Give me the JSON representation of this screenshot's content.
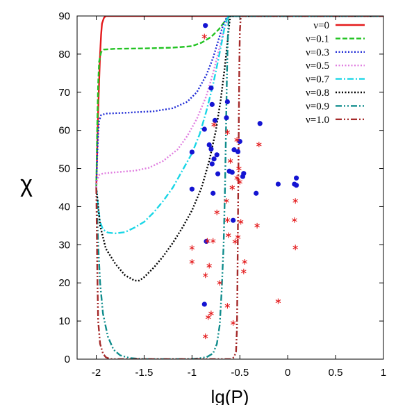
{
  "chart_data": {
    "type": "line",
    "title": "",
    "xlabel": "lg(P)",
    "ylabel": "χ",
    "xlim": [
      -2.2,
      1
    ],
    "ylim": [
      0,
      90
    ],
    "xticks": [
      -2,
      -1.5,
      -1,
      -0.5,
      0,
      0.5,
      1
    ],
    "xtick_labels": [
      "-2",
      "-1.5",
      "-1",
      "-0.5",
      "0",
      "0.5",
      "1"
    ],
    "yticks": [
      0,
      10,
      20,
      30,
      40,
      50,
      60,
      70,
      80,
      90
    ],
    "ytick_labels": [
      "0",
      "10",
      "20",
      "30",
      "40",
      "50",
      "60",
      "70",
      "80",
      "90"
    ],
    "grid": false,
    "legend_position": "top-right",
    "series": [
      {
        "name": "ν=0",
        "color": "#e41a1c",
        "dash": "solid",
        "points": [
          [
            -2.0,
            45
          ],
          [
            -1.99,
            55
          ],
          [
            -1.98,
            65
          ],
          [
            -1.97,
            73
          ],
          [
            -1.96,
            80
          ],
          [
            -1.95,
            85
          ],
          [
            -1.94,
            88
          ],
          [
            -1.92,
            89.5
          ],
          [
            -1.9,
            90
          ],
          [
            1.0,
            90
          ]
        ]
      },
      {
        "name": "ν=0.1",
        "color": "#22c322",
        "dash": "dashed",
        "points": [
          [
            -2.0,
            45
          ],
          [
            -1.99,
            60
          ],
          [
            -1.98,
            72
          ],
          [
            -1.97,
            78
          ],
          [
            -1.95,
            80.5
          ],
          [
            -1.92,
            81.2
          ],
          [
            -1.8,
            81.4
          ],
          [
            -1.5,
            81.5
          ],
          [
            -1.2,
            81.7
          ],
          [
            -1.0,
            82.1
          ],
          [
            -0.9,
            83
          ],
          [
            -0.8,
            84.5
          ],
          [
            -0.72,
            86.5
          ],
          [
            -0.66,
            88.5
          ],
          [
            -0.62,
            89.6
          ],
          [
            -0.6,
            90
          ],
          [
            1.0,
            90
          ]
        ]
      },
      {
        "name": "ν=0.3",
        "color": "#1f2bd6",
        "dash": "dotted",
        "points": [
          [
            -2.0,
            45
          ],
          [
            -1.99,
            53
          ],
          [
            -1.98,
            59
          ],
          [
            -1.97,
            62.5
          ],
          [
            -1.95,
            64
          ],
          [
            -1.9,
            64.4
          ],
          [
            -1.7,
            64.6
          ],
          [
            -1.4,
            65
          ],
          [
            -1.2,
            65.8
          ],
          [
            -1.05,
            67.5
          ],
          [
            -0.95,
            70
          ],
          [
            -0.85,
            74.5
          ],
          [
            -0.78,
            79
          ],
          [
            -0.72,
            84
          ],
          [
            -0.67,
            88
          ],
          [
            -0.63,
            90
          ],
          [
            1.0,
            90
          ]
        ]
      },
      {
        "name": "ν=0.5",
        "color": "#e07ee0",
        "dash": "dotted",
        "points": [
          [
            -2.0,
            45
          ],
          [
            -1.99,
            47
          ],
          [
            -1.97,
            48.3
          ],
          [
            -1.93,
            48.7
          ],
          [
            -1.8,
            49
          ],
          [
            -1.6,
            49.4
          ],
          [
            -1.45,
            50.2
          ],
          [
            -1.3,
            52
          ],
          [
            -1.15,
            55
          ],
          [
            -1.05,
            58.5
          ],
          [
            -0.95,
            63
          ],
          [
            -0.85,
            69
          ],
          [
            -0.78,
            75
          ],
          [
            -0.72,
            81
          ],
          [
            -0.67,
            86
          ],
          [
            -0.63,
            89
          ],
          [
            -0.61,
            90
          ],
          [
            1.0,
            90
          ]
        ]
      },
      {
        "name": "ν=0.7",
        "color": "#1ad6e6",
        "dash": "dashdot",
        "points": [
          [
            -2.0,
            45
          ],
          [
            -1.98,
            40
          ],
          [
            -1.96,
            36
          ],
          [
            -1.93,
            34
          ],
          [
            -1.88,
            33.2
          ],
          [
            -1.8,
            33
          ],
          [
            -1.7,
            33.3
          ],
          [
            -1.6,
            34.5
          ],
          [
            -1.5,
            36
          ],
          [
            -1.4,
            38.5
          ],
          [
            -1.3,
            41.5
          ],
          [
            -1.2,
            45
          ],
          [
            -1.1,
            49.5
          ],
          [
            -1.0,
            54
          ],
          [
            -0.92,
            59
          ],
          [
            -0.85,
            65
          ],
          [
            -0.78,
            72
          ],
          [
            -0.73,
            78
          ],
          [
            -0.69,
            83
          ],
          [
            -0.66,
            87
          ],
          [
            -0.63,
            89.5
          ],
          [
            -0.61,
            90
          ],
          [
            1.0,
            90
          ]
        ]
      },
      {
        "name": "ν=0.8",
        "color": "#000000",
        "dash": "dotted",
        "points": [
          [
            -2.0,
            45
          ],
          [
            -1.96,
            35
          ],
          [
            -1.9,
            29
          ],
          [
            -1.8,
            25
          ],
          [
            -1.7,
            22
          ],
          [
            -1.6,
            20.6
          ],
          [
            -1.55,
            20.6
          ],
          [
            -1.5,
            21.5
          ],
          [
            -1.4,
            24
          ],
          [
            -1.3,
            27
          ],
          [
            -1.2,
            30.5
          ],
          [
            -1.1,
            34.5
          ],
          [
            -1.0,
            39
          ],
          [
            -0.9,
            45
          ],
          [
            -0.82,
            52
          ],
          [
            -0.75,
            60
          ],
          [
            -0.7,
            68
          ],
          [
            -0.66,
            76
          ],
          [
            -0.63,
            83
          ],
          [
            -0.61,
            88
          ],
          [
            -0.6,
            90
          ],
          [
            1.0,
            90
          ]
        ]
      },
      {
        "name": "ν=0.9",
        "color": "#0f8c8c",
        "dash": "dashdotdot",
        "points": [
          [
            -2.0,
            45
          ],
          [
            -1.98,
            30
          ],
          [
            -1.96,
            20
          ],
          [
            -1.93,
            12
          ],
          [
            -1.88,
            6
          ],
          [
            -1.82,
            2.5
          ],
          [
            -1.75,
            1
          ],
          [
            -1.65,
            0.3
          ],
          [
            -1.5,
            0
          ],
          [
            -1.0,
            0
          ],
          [
            -0.85,
            0.5
          ],
          [
            -0.78,
            1.5
          ],
          [
            -0.74,
            4
          ],
          [
            -0.71,
            9
          ],
          [
            -0.69,
            18
          ],
          [
            -0.67,
            30
          ],
          [
            -0.655,
            45
          ],
          [
            -0.645,
            60
          ],
          [
            -0.635,
            75
          ],
          [
            -0.625,
            85
          ],
          [
            -0.615,
            90
          ],
          [
            1.0,
            90
          ]
        ]
      },
      {
        "name": "ν=1.0",
        "color": "#a52a2a",
        "dash": "dashdotdot",
        "points": [
          [
            -2.0,
            45
          ],
          [
            -1.99,
            25
          ],
          [
            -1.98,
            10
          ],
          [
            -1.96,
            4
          ],
          [
            -1.93,
            1.5
          ],
          [
            -1.9,
            0.5
          ],
          [
            -1.85,
            0
          ],
          [
            -0.6,
            0
          ],
          [
            -0.56,
            0.5
          ],
          [
            -0.54,
            2
          ],
          [
            -0.53,
            8
          ],
          [
            -0.525,
            20
          ],
          [
            -0.52,
            35
          ],
          [
            -0.515,
            50
          ],
          [
            -0.51,
            65
          ],
          [
            -0.505,
            78
          ],
          [
            -0.5,
            86
          ],
          [
            -0.49,
            90
          ],
          [
            1.0,
            90
          ]
        ]
      }
    ],
    "scatter_dots": {
      "color": "#1414d2",
      "points": [
        [
          -0.86,
          87.5
        ],
        [
          -0.87,
          60.3
        ],
        [
          -0.8,
          71.1
        ],
        [
          -0.79,
          66.8
        ],
        [
          -0.76,
          62.6
        ],
        [
          -0.82,
          56.2
        ],
        [
          -1.0,
          54.3
        ],
        [
          -0.8,
          55.1
        ],
        [
          -0.79,
          51.2
        ],
        [
          -0.77,
          52.5
        ],
        [
          -0.74,
          53.6
        ],
        [
          -0.73,
          48.6
        ],
        [
          -0.78,
          43.5
        ],
        [
          -1.0,
          44.6
        ],
        [
          -0.63,
          67.5
        ],
        [
          -0.64,
          63.3
        ],
        [
          -0.61,
          49.3
        ],
        [
          -0.58,
          49
        ],
        [
          -0.56,
          54.9
        ],
        [
          -0.5,
          57.1
        ],
        [
          -0.52,
          54.4
        ],
        [
          -0.46,
          48.7
        ],
        [
          -0.47,
          47.9
        ],
        [
          -0.29,
          61.8
        ],
        [
          -0.33,
          43.5
        ],
        [
          -0.1,
          45.9
        ],
        [
          0.07,
          45.9
        ],
        [
          0.09,
          47.5
        ],
        [
          0.09,
          45.6
        ],
        [
          -0.57,
          36.4
        ],
        [
          -0.85,
          30.9
        ],
        [
          -0.87,
          14.4
        ]
      ]
    },
    "scatter_stars": {
      "color": "#e41a1c",
      "points": [
        [
          -0.87,
          84.6
        ],
        [
          -0.77,
          61.5
        ],
        [
          -0.63,
          59.5
        ],
        [
          -0.53,
          57.5
        ],
        [
          -0.3,
          56.3
        ],
        [
          -0.6,
          52
        ],
        [
          -0.51,
          50
        ],
        [
          -0.53,
          47.5
        ],
        [
          -0.5,
          46.5
        ],
        [
          -0.58,
          45
        ],
        [
          -0.64,
          41.5
        ],
        [
          -0.74,
          38.5
        ],
        [
          -0.63,
          36.5
        ],
        [
          -0.49,
          36
        ],
        [
          -0.32,
          35
        ],
        [
          -0.62,
          32.5
        ],
        [
          -0.52,
          32
        ],
        [
          -0.55,
          30.8
        ],
        [
          -0.78,
          31
        ],
        [
          -0.84,
          31
        ],
        [
          -1.0,
          29.2
        ],
        [
          -1.0,
          25.5
        ],
        [
          -0.82,
          24.5
        ],
        [
          -0.86,
          22
        ],
        [
          -0.71,
          20
        ],
        [
          -0.45,
          25.5
        ],
        [
          -0.46,
          23
        ],
        [
          -0.63,
          14
        ],
        [
          -0.57,
          9.5
        ],
        [
          -0.8,
          12
        ],
        [
          -0.83,
          11
        ],
        [
          -0.86,
          6
        ],
        [
          0.07,
          36.5
        ],
        [
          0.08,
          29.3
        ],
        [
          0.08,
          41.5
        ],
        [
          -0.1,
          15.2
        ]
      ]
    }
  }
}
